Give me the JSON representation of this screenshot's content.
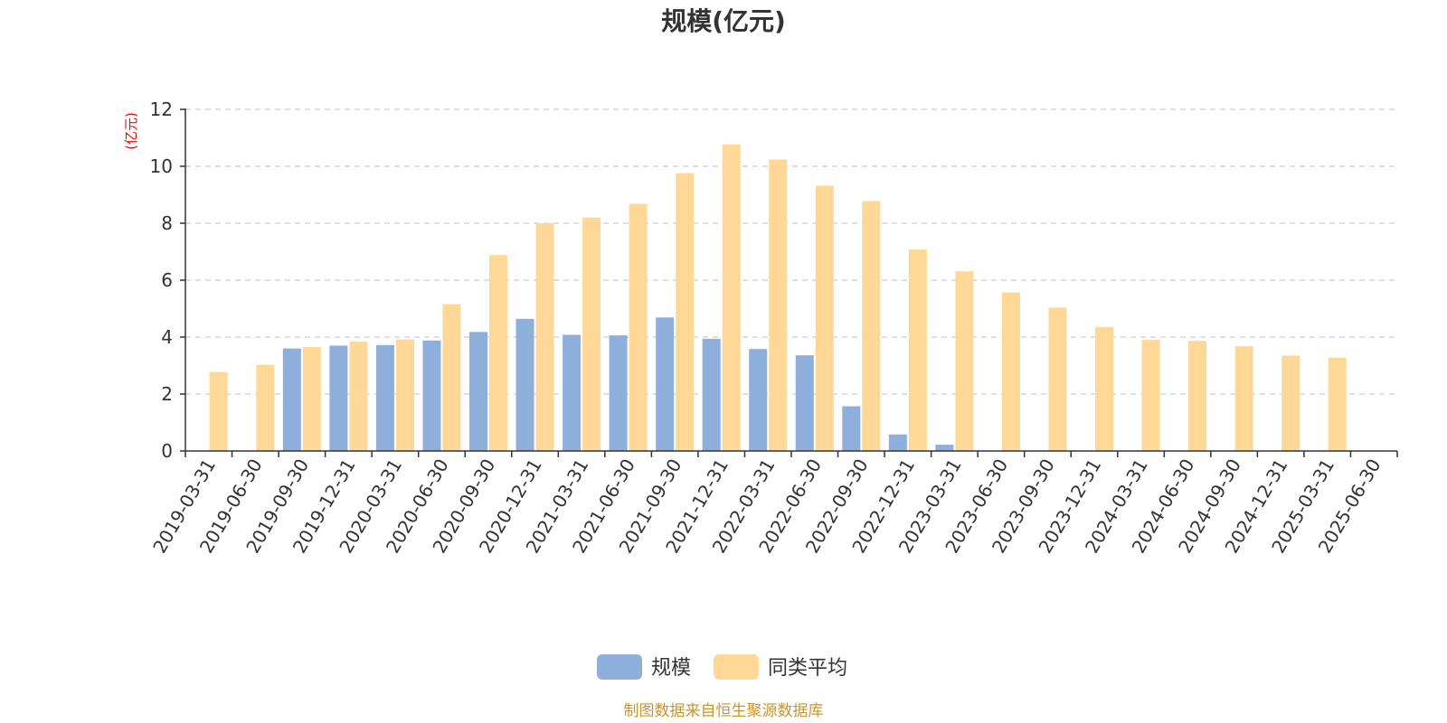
{
  "chart_data": {
    "type": "bar",
    "title": "规模(亿元)",
    "y_unit_label": "(亿元)",
    "ylim": [
      0,
      12
    ],
    "yticks": [
      0,
      2,
      4,
      6,
      8,
      10,
      12
    ],
    "grid": true,
    "legend_position": "bottom-center",
    "categories": [
      "2019-03-31",
      "2019-06-30",
      "2019-09-30",
      "2019-12-31",
      "2020-03-31",
      "2020-06-30",
      "2020-09-30",
      "2020-12-31",
      "2021-03-31",
      "2021-06-30",
      "2021-09-30",
      "2021-12-31",
      "2022-03-31",
      "2022-06-30",
      "2022-09-30",
      "2022-12-31",
      "2023-03-31",
      "2023-06-30",
      "2023-09-30",
      "2023-12-31",
      "2024-03-31",
      "2024-06-30",
      "2024-09-30",
      "2024-12-31",
      "2025-03-31",
      "2025-06-30"
    ],
    "series": [
      {
        "name": "规模",
        "color": "#8eaedc",
        "values": [
          null,
          null,
          3.6,
          3.7,
          3.72,
          3.88,
          4.18,
          4.64,
          4.08,
          4.06,
          4.69,
          3.94,
          3.58,
          3.36,
          1.57,
          0.58,
          0.22,
          null,
          null,
          null,
          null,
          null,
          null,
          null,
          null,
          null
        ]
      },
      {
        "name": "同类平均",
        "color": "#ffd898",
        "values": [
          2.77,
          3.03,
          3.65,
          3.84,
          3.92,
          5.16,
          6.88,
          8.0,
          8.2,
          8.68,
          9.76,
          10.77,
          10.24,
          9.32,
          8.78,
          7.08,
          6.31,
          5.57,
          5.04,
          4.35,
          3.9,
          3.87,
          3.68,
          3.35,
          3.28,
          null
        ]
      }
    ],
    "source_note": "制图数据来自恒生聚源数据库",
    "colors": {
      "axis": "#333333",
      "grid": "#cccccc",
      "unit_label": "#ff0000",
      "source_note": "#c8952e"
    }
  }
}
